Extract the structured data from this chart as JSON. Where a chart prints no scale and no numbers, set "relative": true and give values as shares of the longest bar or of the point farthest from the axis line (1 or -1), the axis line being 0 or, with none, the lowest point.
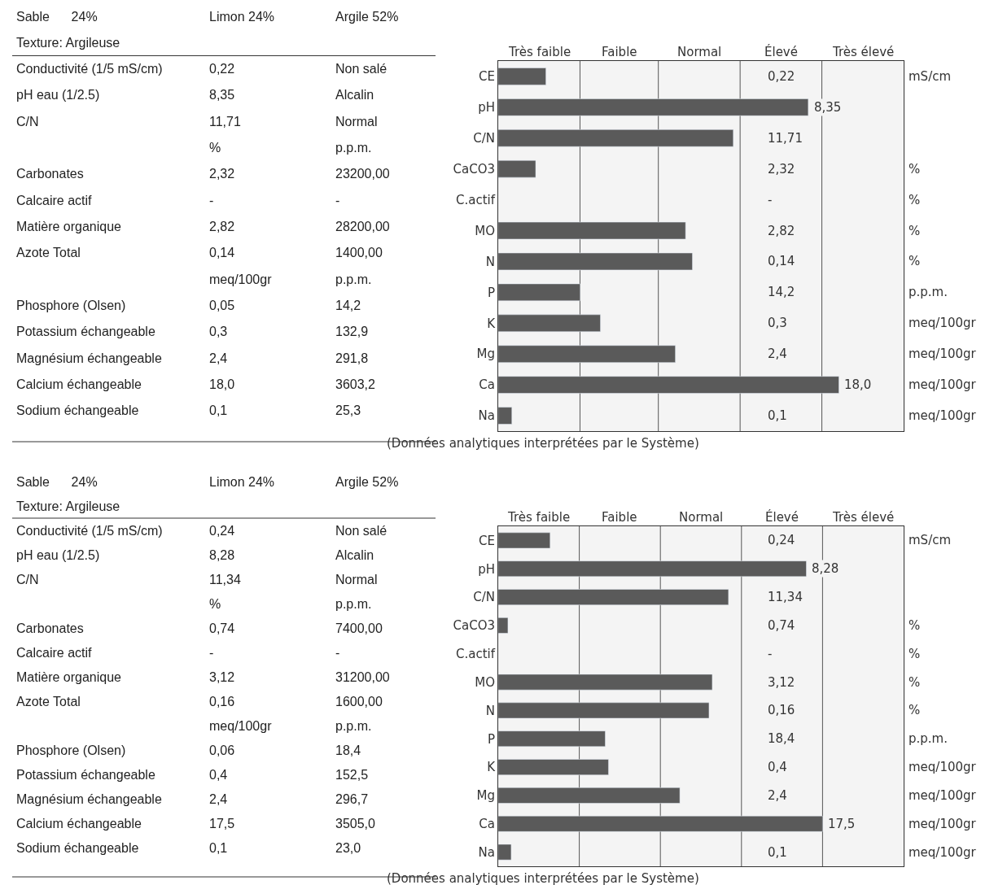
{
  "chart_data": [
    {
      "type": "other",
      "y_categories": [
        "Sable      24%",
        "Texture: Argileuse",
        "Conductivité (1/5 mS/cm)",
        "pH eau (1/2.5)",
        "C/N",
        null,
        "Carbonates",
        "Calcaire actif",
        "Matière organique",
        "Azote Total",
        null,
        "Phosphore (Olsen)",
        "Potassium échangeable",
        "Magnésium échangeable",
        "Calcium échangeable",
        "Sodium échangeable"
      ],
      "cell_labels": [
        [
          "Limon 24%",
          "Argile 52%"
        ],
        [
          null,
          null
        ],
        [
          "0,22",
          "Non salé"
        ],
        [
          "8,35",
          "Alcalin"
        ],
        [
          "11,71",
          "Normal"
        ],
        [
          "%",
          "p.p.m."
        ],
        [
          "2,32",
          "23200,00"
        ],
        [
          "-",
          "-"
        ],
        [
          "2,82",
          "28200,00"
        ],
        [
          "0,14",
          "1400,00"
        ],
        [
          "meq/100gr",
          "p.p.m."
        ],
        [
          "0,05",
          "14,2"
        ],
        [
          "0,3",
          "132,9"
        ],
        [
          "2,4",
          "291,8"
        ],
        [
          "18,0",
          "3603,2"
        ],
        [
          "0,1",
          "25,3"
        ]
      ]
    },
    {
      "type": "bar",
      "orientation": "horizontal",
      "color": "#5a5a5a",
      "relative": true,
      "categories": [
        "CE",
        "pH",
        "C/N",
        "CaCO3",
        "C.actif",
        "MO",
        "N",
        "P",
        "K",
        "Mg",
        "Ca",
        "Na"
      ],
      "values": [
        0.14,
        0.91,
        0.69,
        0.11,
        null,
        0.55,
        0.57,
        0.24,
        0.3,
        0.52,
        1,
        0.04
      ],
      "y2_categories": [
        "mS/cm",
        null,
        null,
        "%",
        "%",
        "%",
        "%",
        "p.p.m.",
        "meq/100gr",
        "meq/100gr",
        "meq/100gr",
        "meq/100gr"
      ],
      "bands": [
        {
          "axis": "x",
          "from": 0,
          "to": 0.24,
          "label": "Très faible"
        },
        {
          "axis": "x",
          "from": 0.24,
          "to": 0.47,
          "label": "Faible"
        },
        {
          "axis": "x",
          "from": 0.47,
          "to": 0.71,
          "label": "Normal"
        },
        {
          "axis": "x",
          "from": 0.71,
          "to": 0.95,
          "label": "Élevé"
        },
        {
          "axis": "x",
          "from": 0.95,
          "to": 1.19,
          "label": "Très élevé"
        }
      ],
      "annotations": [
        "0,22",
        "8,35",
        "11,71",
        "2,32",
        "-",
        "2,82",
        "0,14",
        "14,2",
        "0,3",
        "2,4",
        "18,0",
        "0,1",
        "(Données analytiques interprétées par le Système)"
      ]
    },
    {
      "type": "other",
      "y_categories": [
        "Sable      24%",
        "Texture: Argileuse",
        "Conductivité (1/5 mS/cm)",
        "pH eau (1/2.5)",
        "C/N",
        null,
        "Carbonates",
        "Calcaire actif",
        "Matière organique",
        "Azote Total",
        null,
        "Phosphore (Olsen)",
        "Potassium échangeable",
        "Magnésium échangeable",
        "Calcium échangeable",
        "Sodium échangeable"
      ],
      "cell_labels": [
        [
          "Limon 24%",
          "Argile 52%"
        ],
        [
          null,
          null
        ],
        [
          "0,24",
          "Non salé"
        ],
        [
          "8,28",
          "Alcalin"
        ],
        [
          "11,34",
          "Normal"
        ],
        [
          "%",
          "p.p.m."
        ],
        [
          "0,74",
          "7400,00"
        ],
        [
          "-",
          "-"
        ],
        [
          "3,12",
          "31200,00"
        ],
        [
          "0,16",
          "1600,00"
        ],
        [
          "meq/100gr",
          "p.p.m."
        ],
        [
          "0,06",
          "18,4"
        ],
        [
          "0,4",
          "152,5"
        ],
        [
          "2,4",
          "296,7"
        ],
        [
          "17,5",
          "3505,0"
        ],
        [
          "0,1",
          "23,0"
        ]
      ]
    },
    {
      "type": "bar",
      "orientation": "horizontal",
      "color": "#5a5a5a",
      "relative": true,
      "categories": [
        "CE",
        "pH",
        "C/N",
        "CaCO3",
        "C.actif",
        "MO",
        "N",
        "P",
        "K",
        "Mg",
        "Ca",
        "Na"
      ],
      "values": [
        0.16,
        0.95,
        0.71,
        0.03,
        null,
        0.66,
        0.65,
        0.33,
        0.34,
        0.56,
        1,
        0.04
      ],
      "y2_categories": [
        "mS/cm",
        null,
        null,
        "%",
        "%",
        "%",
        "%",
        "p.p.m.",
        "meq/100gr",
        "meq/100gr",
        "meq/100gr",
        "meq/100gr"
      ],
      "bands": [
        {
          "axis": "x",
          "from": 0,
          "to": 0.25,
          "label": "Très faible"
        },
        {
          "axis": "x",
          "from": 0.25,
          "to": 0.5,
          "label": "Faible"
        },
        {
          "axis": "x",
          "from": 0.5,
          "to": 0.75,
          "label": "Normal"
        },
        {
          "axis": "x",
          "from": 0.75,
          "to": 1.0,
          "label": "Élevé"
        },
        {
          "axis": "x",
          "from": 1.0,
          "to": 1.25,
          "label": "Très élevé"
        }
      ],
      "annotations": [
        "0,24",
        "8,28",
        "11,34",
        "0,74",
        "-",
        "3,12",
        "0,16",
        "18,4",
        "0,4",
        "2,4",
        "17,5",
        "0,1",
        "(Données analytiques interprétées par le Système)"
      ]
    }
  ]
}
